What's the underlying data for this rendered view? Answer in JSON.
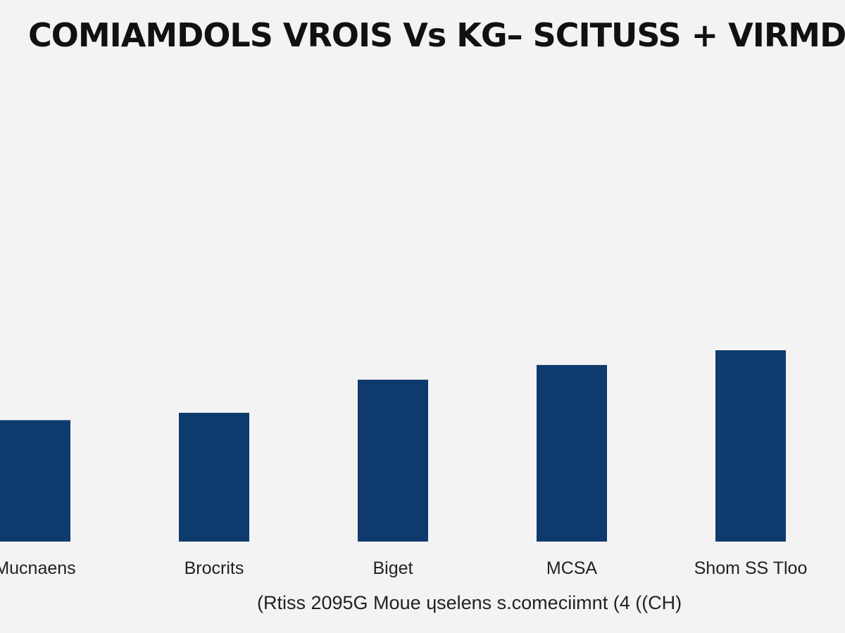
{
  "chart_data": {
    "type": "bar",
    "title": "COMIAMDOLS VROIS Vs KG– SCITUSS + VIRMDAN",
    "xlabel": "(Rtiss 2095G Moue ɥselens s.comeciimnt (4 ((CH)",
    "ylabel": "",
    "categories": [
      "Mucnaens",
      "Brocrits",
      "Biget",
      "MCSA",
      "Shom SS Tloo"
    ],
    "values": [
      33,
      35,
      44,
      48,
      52
    ],
    "ylim": [
      0,
      130
    ],
    "grid": false,
    "bar_color": "#0f3a6e",
    "background_color": "#f3f3f3"
  }
}
